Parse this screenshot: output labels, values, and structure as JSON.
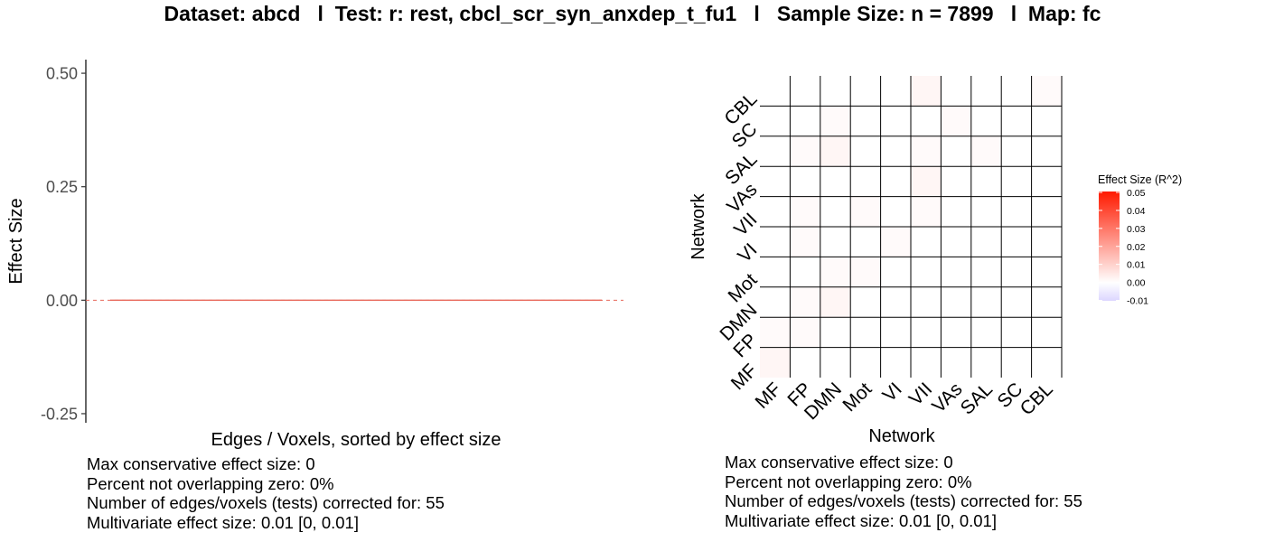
{
  "title": "Dataset: abcd   l  Test: r: rest, cbcl_scr_syn_anxdep_t_fu1   l   Sample Size: n = 7899   l  Map: fc",
  "stats_left": [
    "Max conservative effect size: 0",
    "Percent not overlapping zero: 0%",
    "Number of edges/voxels (tests) corrected for: 55",
    "Multivariate effect size: 0.01 [0, 0.01]"
  ],
  "stats_right": [
    "Max conservative effect size: 0",
    "Percent not overlapping zero: 0%",
    "Number of edges/voxels (tests) corrected for: 55",
    "Multivariate effect size: 0.01 [0, 0.01]"
  ],
  "colors": {
    "line": "#e8685a",
    "zero_line": "#e8685a",
    "grid": "#000000",
    "scale_low": "#dcd6ff",
    "scale_mid": "#ffffff",
    "scale_high": "#ff1a00"
  },
  "chart_data": [
    {
      "type": "line",
      "xlabel": "Edges / Voxels, sorted by effect size",
      "ylabel": "Effect Size",
      "ylim": [
        -0.27,
        0.53
      ],
      "yticks": [
        -0.25,
        0.0,
        0.25,
        0.5
      ],
      "ytick_labels": [
        "-0.25",
        "0.00",
        "0.25",
        "0.50"
      ],
      "n_points": 55,
      "values_range": [
        0.0,
        0.0
      ],
      "reference_line": 0,
      "grid": false
    },
    {
      "type": "heatmap",
      "xlabel": "Network",
      "ylabel": "Network",
      "categories": [
        "MF",
        "FP",
        "DMN",
        "Mot",
        "VI",
        "VII",
        "VAs",
        "SAL",
        "SC",
        "CBL"
      ],
      "lower_triangle": true,
      "values": [
        [
          0.002
        ],
        [
          0.001,
          0.001
        ],
        [
          0.0,
          0.001,
          0.002
        ],
        [
          0.0,
          0.0,
          0.001,
          0.001
        ],
        [
          0.0,
          0.001,
          0.0,
          0.0,
          0.001
        ],
        [
          0.0,
          0.001,
          0.0,
          0.001,
          0.0,
          0.001
        ],
        [
          0.0,
          0.0,
          0.0,
          0.0,
          0.0,
          0.002,
          0.0
        ],
        [
          0.0,
          0.001,
          0.002,
          0.0,
          0.0,
          0.001,
          0.0,
          0.001
        ],
        [
          0.0,
          0.0,
          0.001,
          0.0,
          0.0,
          0.0,
          0.001,
          0.0,
          0.0
        ],
        [
          0.0,
          0.0,
          0.0,
          0.0,
          0.0,
          0.002,
          0.0,
          0.0,
          0.0,
          0.001
        ]
      ],
      "legend": {
        "title": "Effect Size (R^2)",
        "min": -0.01,
        "max": 0.05,
        "ticks": [
          0.05,
          0.04,
          0.03,
          0.02,
          0.01,
          0.0,
          -0.01
        ],
        "tick_labels": [
          "0.05",
          "0.04",
          "0.03",
          "0.02",
          "0.01",
          "0.00",
          "-0.01"
        ],
        "placement": "right"
      }
    }
  ]
}
